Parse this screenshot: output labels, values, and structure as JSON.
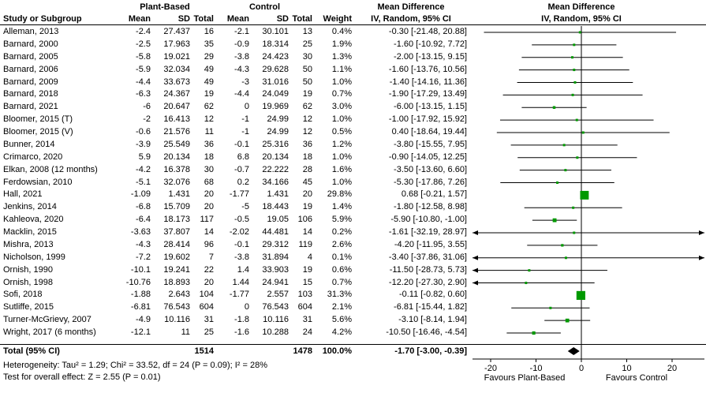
{
  "header": {
    "group1_label": "Plant-Based",
    "group2_label": "Control",
    "study_col": "Study or Subgroup",
    "mean_col": "Mean",
    "sd_col": "SD",
    "total_col": "Total",
    "weight_col": "Weight",
    "md_line1": "Mean Difference",
    "md_line2": "IV, Random, 95% CI"
  },
  "chart_data": {
    "type": "forest",
    "effect_measure": "Mean Difference, IV, Random, 95% CI",
    "square_color": "#009900",
    "diamond_color": "#000000",
    "studies": [
      {
        "name": "Alleman, 2013",
        "mean1": "-2.4",
        "sd1": "27.437",
        "n1": "16",
        "mean2": "-2.1",
        "sd2": "30.101",
        "n2": "13",
        "weight": "0.4%",
        "ci": "-0.30 [-21.48, 20.88]",
        "est": -0.3,
        "lo": -21.48,
        "hi": 20.88,
        "w": 0.4
      },
      {
        "name": "Barnard, 2000",
        "mean1": "-2.5",
        "sd1": "17.963",
        "n1": "35",
        "mean2": "-0.9",
        "sd2": "18.314",
        "n2": "25",
        "weight": "1.9%",
        "ci": "-1.60 [-10.92, 7.72]",
        "est": -1.6,
        "lo": -10.92,
        "hi": 7.72,
        "w": 1.9
      },
      {
        "name": "Barnard, 2005",
        "mean1": "-5.8",
        "sd1": "19.021",
        "n1": "29",
        "mean2": "-3.8",
        "sd2": "24.423",
        "n2": "30",
        "weight": "1.3%",
        "ci": "-2.00 [-13.15, 9.15]",
        "est": -2.0,
        "lo": -13.15,
        "hi": 9.15,
        "w": 1.3
      },
      {
        "name": "Barnard, 2006",
        "mean1": "-5.9",
        "sd1": "32.034",
        "n1": "49",
        "mean2": "-4.3",
        "sd2": "29.628",
        "n2": "50",
        "weight": "1.1%",
        "ci": "-1.60 [-13.76, 10.56]",
        "est": -1.6,
        "lo": -13.76,
        "hi": 10.56,
        "w": 1.1
      },
      {
        "name": "Barnard, 2009",
        "mean1": "-4.4",
        "sd1": "33.673",
        "n1": "49",
        "mean2": "-3",
        "sd2": "31.016",
        "n2": "50",
        "weight": "1.0%",
        "ci": "-1.40 [-14.16, 11.36]",
        "est": -1.4,
        "lo": -14.16,
        "hi": 11.36,
        "w": 1.0
      },
      {
        "name": "Barnard, 2018",
        "mean1": "-6.3",
        "sd1": "24.367",
        "n1": "19",
        "mean2": "-4.4",
        "sd2": "24.049",
        "n2": "19",
        "weight": "0.7%",
        "ci": "-1.90 [-17.29, 13.49]",
        "est": -1.9,
        "lo": -17.29,
        "hi": 13.49,
        "w": 0.7
      },
      {
        "name": "Barnard, 2021",
        "mean1": "-6",
        "sd1": "20.647",
        "n1": "62",
        "mean2": "0",
        "sd2": "19.969",
        "n2": "62",
        "weight": "3.0%",
        "ci": "-6.00 [-13.15, 1.15]",
        "est": -6.0,
        "lo": -13.15,
        "hi": 1.15,
        "w": 3.0
      },
      {
        "name": "Bloomer, 2015 (T)",
        "mean1": "-2",
        "sd1": "16.413",
        "n1": "12",
        "mean2": "-1",
        "sd2": "24.99",
        "n2": "12",
        "weight": "1.0%",
        "ci": "-1.00 [-17.92, 15.92]",
        "est": -1.0,
        "lo": -17.92,
        "hi": 15.92,
        "w": 1.0
      },
      {
        "name": "Bloomer, 2015 (V)",
        "mean1": "-0.6",
        "sd1": "21.576",
        "n1": "11",
        "mean2": "-1",
        "sd2": "24.99",
        "n2": "12",
        "weight": "0.5%",
        "ci": "0.40 [-18.64, 19.44]",
        "est": 0.4,
        "lo": -18.64,
        "hi": 19.44,
        "w": 0.5
      },
      {
        "name": "Bunner, 2014",
        "mean1": "-3.9",
        "sd1": "25.549",
        "n1": "36",
        "mean2": "-0.1",
        "sd2": "25.316",
        "n2": "36",
        "weight": "1.2%",
        "ci": "-3.80 [-15.55, 7.95]",
        "est": -3.8,
        "lo": -15.55,
        "hi": 7.95,
        "w": 1.2
      },
      {
        "name": "Crimarco, 2020",
        "mean1": "5.9",
        "sd1": "20.134",
        "n1": "18",
        "mean2": "6.8",
        "sd2": "20.134",
        "n2": "18",
        "weight": "1.0%",
        "ci": "-0.90 [-14.05, 12.25]",
        "est": -0.9,
        "lo": -14.05,
        "hi": 12.25,
        "w": 1.0
      },
      {
        "name": "Elkan, 2008 (12 months)",
        "mean1": "-4.2",
        "sd1": "16.378",
        "n1": "30",
        "mean2": "-0.7",
        "sd2": "22.222",
        "n2": "28",
        "weight": "1.6%",
        "ci": "-3.50 [-13.60, 6.60]",
        "est": -3.5,
        "lo": -13.6,
        "hi": 6.6,
        "w": 1.6
      },
      {
        "name": "Ferdowsian, 2010",
        "mean1": "-5.1",
        "sd1": "32.076",
        "n1": "68",
        "mean2": "0.2",
        "sd2": "34.166",
        "n2": "45",
        "weight": "1.0%",
        "ci": "-5.30 [-17.86, 7.26]",
        "est": -5.3,
        "lo": -17.86,
        "hi": 7.26,
        "w": 1.0
      },
      {
        "name": "Hall, 2021",
        "mean1": "-1.09",
        "sd1": "1.431",
        "n1": "20",
        "mean2": "-1.77",
        "sd2": "1.431",
        "n2": "20",
        "weight": "29.8%",
        "ci": "0.68 [-0.21, 1.57]",
        "est": 0.68,
        "lo": -0.21,
        "hi": 1.57,
        "w": 29.8
      },
      {
        "name": "Jenkins, 2014",
        "mean1": "-6.8",
        "sd1": "15.709",
        "n1": "20",
        "mean2": "-5",
        "sd2": "18.443",
        "n2": "19",
        "weight": "1.4%",
        "ci": "-1.80 [-12.58, 8.98]",
        "est": -1.8,
        "lo": -12.58,
        "hi": 8.98,
        "w": 1.4
      },
      {
        "name": "Kahleova, 2020",
        "mean1": "-6.4",
        "sd1": "18.173",
        "n1": "117",
        "mean2": "-0.5",
        "sd2": "19.05",
        "n2": "106",
        "weight": "5.9%",
        "ci": "-5.90 [-10.80, -1.00]",
        "est": -5.9,
        "lo": -10.8,
        "hi": -1.0,
        "w": 5.9
      },
      {
        "name": "Macklin, 2015",
        "mean1": "-3.63",
        "sd1": "37.807",
        "n1": "14",
        "mean2": "-2.02",
        "sd2": "44.481",
        "n2": "14",
        "weight": "0.2%",
        "ci": "-1.61 [-32.19, 28.97]",
        "est": -1.61,
        "lo": -32.19,
        "hi": 28.97,
        "w": 0.2
      },
      {
        "name": "Mishra, 2013",
        "mean1": "-4.3",
        "sd1": "28.414",
        "n1": "96",
        "mean2": "-0.1",
        "sd2": "29.312",
        "n2": "119",
        "weight": "2.6%",
        "ci": "-4.20 [-11.95, 3.55]",
        "est": -4.2,
        "lo": -11.95,
        "hi": 3.55,
        "w": 2.6
      },
      {
        "name": "Nicholson, 1999",
        "mean1": "-7.2",
        "sd1": "19.602",
        "n1": "7",
        "mean2": "-3.8",
        "sd2": "31.894",
        "n2": "4",
        "weight": "0.1%",
        "ci": "-3.40 [-37.86, 31.06]",
        "est": -3.4,
        "lo": -37.86,
        "hi": 31.06,
        "w": 0.1
      },
      {
        "name": "Ornish, 1990",
        "mean1": "-10.1",
        "sd1": "19.241",
        "n1": "22",
        "mean2": "1.4",
        "sd2": "33.903",
        "n2": "19",
        "weight": "0.6%",
        "ci": "-11.50 [-28.73, 5.73]",
        "est": -11.5,
        "lo": -28.73,
        "hi": 5.73,
        "w": 0.6
      },
      {
        "name": "Ornish, 1998",
        "mean1": "-10.76",
        "sd1": "18.893",
        "n1": "20",
        "mean2": "1.44",
        "sd2": "24.941",
        "n2": "15",
        "weight": "0.7%",
        "ci": "-12.20 [-27.30, 2.90]",
        "est": -12.2,
        "lo": -27.3,
        "hi": 2.9,
        "w": 0.7
      },
      {
        "name": "Sofi, 2018",
        "mean1": "-1.88",
        "sd1": "2.643",
        "n1": "104",
        "mean2": "-1.77",
        "sd2": "2.557",
        "n2": "103",
        "weight": "31.3%",
        "ci": "-0.11 [-0.82, 0.60]",
        "est": -0.11,
        "lo": -0.82,
        "hi": 0.6,
        "w": 31.3
      },
      {
        "name": "Sutliffe, 2015",
        "mean1": "-6.81",
        "sd1": "76.543",
        "n1": "604",
        "mean2": "0",
        "sd2": "76.543",
        "n2": "604",
        "weight": "2.1%",
        "ci": "-6.81 [-15.44, 1.82]",
        "est": -6.81,
        "lo": -15.44,
        "hi": 1.82,
        "w": 2.1
      },
      {
        "name": "Turner-McGrievy, 2007",
        "mean1": "-4.9",
        "sd1": "10.116",
        "n1": "31",
        "mean2": "-1.8",
        "sd2": "10.116",
        "n2": "31",
        "weight": "5.6%",
        "ci": "-3.10 [-8.14, 1.94]",
        "est": -3.1,
        "lo": -8.14,
        "hi": 1.94,
        "w": 5.6
      },
      {
        "name": "Wright, 2017 (6 months)",
        "mean1": "-12.1",
        "sd1": "11",
        "n1": "25",
        "mean2": "-1.6",
        "sd2": "10.288",
        "n2": "24",
        "weight": "4.2%",
        "ci": "-10.50 [-16.46, -4.54]",
        "est": -10.5,
        "lo": -16.46,
        "hi": -4.54,
        "w": 4.2
      }
    ],
    "total": {
      "label": "Total (95% CI)",
      "n1": "1514",
      "n2": "1478",
      "weight": "100.0%",
      "ci": "-1.70 [-3.00, -0.39]",
      "est": -1.7,
      "lo": -3.0,
      "hi": -0.39
    },
    "axis": {
      "ticks": [
        -20,
        -10,
        0,
        10,
        20
      ],
      "xlim": [
        -24,
        27
      ],
      "favours_left": "Favours Plant-Based",
      "favours_right": "Favours Control"
    }
  },
  "footer": {
    "heterogeneity": "Heterogeneity: Tau² = 1.29; Chi² = 33.52, df = 24 (P = 0.09); I² = 28%",
    "overall_effect": "Test for overall effect: Z = 2.55 (P = 0.01)"
  }
}
